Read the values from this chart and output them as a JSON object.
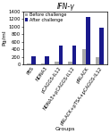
{
  "title": "IFN-γ",
  "ylabel": "Pg/ml",
  "xlabel": "Groups",
  "categories": [
    "PBS",
    "NDNA3",
    "pCAGGS-IL12",
    "NDNA3+pCAGGS-IL12",
    "pNLACK",
    "pNLACK+pTSA+pCAGGS-IL12"
  ],
  "before_challenge": [
    25,
    25,
    80,
    90,
    400,
    200
  ],
  "after_challenge": [
    220,
    220,
    500,
    500,
    1250,
    970
  ],
  "before_color": "#aaaaaa",
  "after_color": "#1a1a8c",
  "ylim": [
    0,
    1400
  ],
  "yticks": [
    0,
    200,
    400,
    600,
    800,
    1000,
    1200,
    1400
  ],
  "legend_before": "Before challenge",
  "legend_after": "After challenge",
  "title_fontsize": 5.5,
  "axis_fontsize": 4.5,
  "tick_fontsize": 3.8,
  "legend_fontsize": 3.5,
  "bar_width": 0.3
}
